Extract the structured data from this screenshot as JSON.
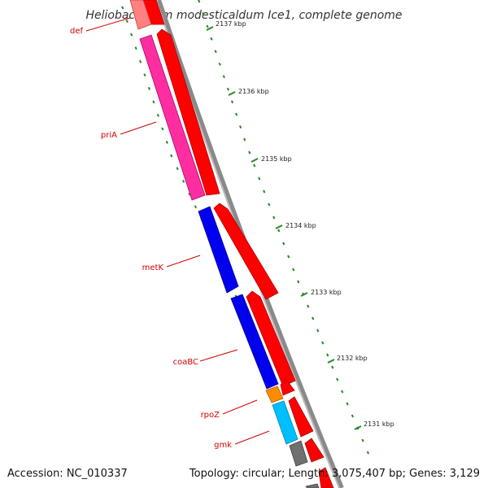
{
  "title": "Heliobacterium modesticaldum Ice1, complete genome",
  "footer": {
    "accession": "Accession: NC_010337",
    "summary": "Topology: circular; Length: 3,075,407 bp; Genes: 3,129"
  },
  "gene_labels": [
    "def",
    "priA",
    "metK",
    "coaBC",
    "rpoZ",
    "gmk"
  ],
  "tick_labels": [
    "2137 kbp",
    "2136 kbp",
    "2135 kbp",
    "2134 kbp",
    "2133 kbp",
    "2132 kbp",
    "2131 kbp"
  ],
  "colors": {
    "forward_gene": "#ff0000",
    "pink_gene": "#ff2ea0",
    "blue_gene": "#0000ee",
    "orange_gene": "#ff8c00",
    "cyan_gene": "#00bfff",
    "gray_gene": "#707070",
    "backbone": "#8a8a8a",
    "tick_green": "#228b22",
    "label_red": "#d20000"
  }
}
